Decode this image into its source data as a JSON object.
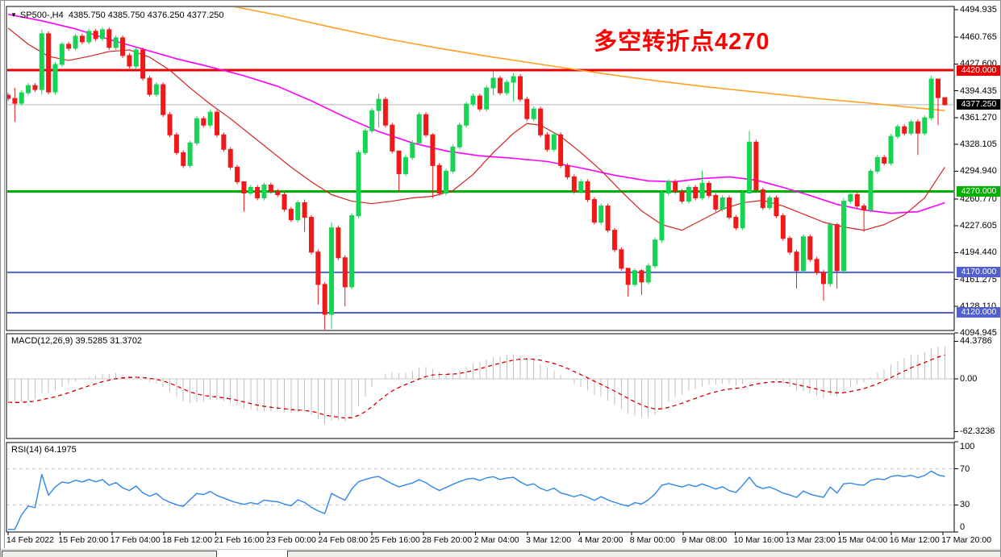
{
  "window": {
    "symbol_title": "SP500-,H4",
    "ohlc_readout": "4385.750 4385.750 4376.250 4377.250",
    "dropdown_glyph": "▼"
  },
  "annotation": {
    "text": "多空转折点4270",
    "color": "#ff0000"
  },
  "colors": {
    "bull": "#17d452",
    "bear": "#f11818",
    "ma_red": "#d42222",
    "ma_magenta": "#ff00ff",
    "ma_orange": "#ffa020",
    "macd_hist": "#c0c0c0",
    "macd_signal": "#dd0000",
    "rsi_line": "#2e86e8",
    "level_dash": "#c4c4c4",
    "current_line": "#b8b8b8",
    "border": "#000000"
  },
  "y_axis": {
    "main_ticks": [
      "4494.935",
      "4460.765",
      "4427.600",
      "4394.435",
      "4361.270",
      "4328.105",
      "4294.940",
      "4260.770",
      "4227.605",
      "4194.440",
      "4161.275",
      "4128.110",
      "4094.945"
    ],
    "badges": [
      {
        "text": "4420.000",
        "price": 4420.0,
        "bg": "#e80000"
      },
      {
        "text": "4377.250",
        "price": 4377.25,
        "bg": "#000000"
      },
      {
        "text": "4270.000",
        "price": 4270.0,
        "bg": "#00b000"
      },
      {
        "text": "4170.000",
        "price": 4170.0,
        "bg": "#5060d0"
      },
      {
        "text": "4120.000",
        "price": 4120.0,
        "bg": "#5060d0"
      }
    ]
  },
  "macd_panel": {
    "header": "MACD(12,26,9) 39.5285 31.3702",
    "ticks": [
      {
        "label": "44.3786",
        "value": 44.3786
      },
      {
        "label": "0.00",
        "value": 0
      },
      {
        "label": "-62.3236",
        "value": -62.3236
      }
    ]
  },
  "rsi_panel": {
    "header": "RSI(14) 64.1975",
    "ticks": [
      {
        "label": "100",
        "value": 100
      },
      {
        "label": "70",
        "value": 70
      },
      {
        "label": "30",
        "value": 30
      },
      {
        "label": "0",
        "value": 0
      }
    ],
    "levels": [
      70,
      30
    ]
  },
  "x_axis": {
    "labels": [
      "14 Feb 2022",
      "15 Feb 20:00",
      "17 Feb 04:00",
      "18 Feb 12:00",
      "21 Feb 16:00",
      "23 Feb 00:00",
      "24 Feb 08:00",
      "25 Feb 16:00",
      "28 Feb 20:00",
      "2 Mar 04:00",
      "3 Mar 12:00",
      "4 Mar 20:00",
      "8 Mar 00:00",
      "9 Mar 08:00",
      "10 Mar 16:00",
      "13 Mar 23:00",
      "15 Mar 04:00",
      "16 Mar 12:00",
      "17 Mar 20:00"
    ]
  },
  "chart_data": {
    "type": "candlestick",
    "symbol": "SP500-",
    "timeframe": "H4",
    "title": "SP500- H4 with MACD(12,26,9) and RSI(14)",
    "ylim_main": [
      4094.945,
      4494.935
    ],
    "ylim_macd": [
      -62.3236,
      44.3786
    ],
    "ylim_rsi": [
      0,
      100
    ],
    "current_price": 4377.25,
    "last_bar": {
      "open": 4385.75,
      "high": 4385.75,
      "low": 4376.25,
      "close": 4377.25
    },
    "first_open": 4389,
    "closes": [
      4385,
      4379,
      4392,
      4401,
      4396,
      4465,
      4393,
      4427,
      4452,
      4447,
      4462,
      4455,
      4468,
      4459,
      4470,
      4448,
      4460,
      4438,
      4425,
      4445,
      4410,
      4390,
      4402,
      4365,
      4340,
      4318,
      4302,
      4330,
      4360,
      4352,
      4368,
      4340,
      4322,
      4300,
      4282,
      4268,
      4275,
      4262,
      4278,
      4270,
      4266,
      4248,
      4235,
      4256,
      4238,
      4195,
      4155,
      4118,
      4225,
      4188,
      4152,
      4240,
      4318,
      4345,
      4370,
      4384,
      4352,
      4320,
      4292,
      4312,
      4330,
      4365,
      4340,
      4302,
      4268,
      4295,
      4325,
      4352,
      4378,
      4388,
      4372,
      4398,
      4410,
      4392,
      4405,
      4412,
      4384,
      4360,
      4372,
      4340,
      4322,
      4340,
      4302,
      4288,
      4270,
      4282,
      4260,
      4232,
      4252,
      4222,
      4198,
      4175,
      4155,
      4172,
      4158,
      4178,
      4210,
      4268,
      4282,
      4270,
      4258,
      4275,
      4262,
      4280,
      4265,
      4248,
      4262,
      4238,
      4225,
      4268,
      4331,
      4272,
      4250,
      4262,
      4240,
      4212,
      4195,
      4172,
      4214,
      4186,
      4170,
      4156,
      4229,
      4172,
      4258,
      4266,
      4252,
      4247,
      4295,
      4312,
      4305,
      4338,
      4350,
      4342,
      4356,
      4342,
      4361,
      4409,
      4386,
      4377.25
    ],
    "wick_overrides": {
      "1": [
        4398,
        4356
      ],
      "5": [
        4470,
        4390
      ],
      "35": [
        4281,
        4245
      ],
      "44": [
        4260,
        4220
      ],
      "46": [
        4198,
        4130
      ],
      "47": [
        4158,
        4095
      ],
      "48": [
        4232,
        4100
      ],
      "50": [
        4191,
        4128
      ],
      "55": [
        4391,
        4349
      ],
      "58": [
        4315,
        4270
      ],
      "63": [
        4342,
        4262
      ],
      "72": [
        4419,
        4389
      ],
      "75": [
        4416,
        4381
      ],
      "92": [
        4175,
        4140
      ],
      "94": [
        4174,
        4142
      ],
      "103": [
        4296,
        4259
      ],
      "110": [
        4345,
        4268
      ],
      "117": [
        4198,
        4150
      ],
      "121": [
        4173,
        4135
      ],
      "122": [
        4232,
        4152
      ],
      "123": [
        4231,
        4150
      ],
      "124": [
        4262,
        4168
      ],
      "127": [
        4255,
        4220
      ],
      "135": [
        4359,
        4315
      ],
      "137": [
        4413,
        4358
      ],
      "138": [
        4409,
        4352
      ],
      "139": [
        4386,
        4376.25
      ]
    },
    "hlines": [
      {
        "price": 4420,
        "color": "#e80000",
        "width": 3
      },
      {
        "price": 4270,
        "color": "#00b000",
        "width": 3
      },
      {
        "price": 4170,
        "color": "#5060d0",
        "width": 2
      },
      {
        "price": 4120,
        "color": "#5060d0",
        "width": 2
      }
    ],
    "ma_red": [
      [
        0,
        4472
      ],
      [
        3,
        4452
      ],
      [
        6,
        4437
      ],
      [
        9,
        4432
      ],
      [
        12,
        4437
      ],
      [
        15,
        4443
      ],
      [
        18,
        4445
      ],
      [
        21,
        4436
      ],
      [
        24,
        4420
      ],
      [
        27,
        4398
      ],
      [
        30,
        4378
      ],
      [
        33,
        4360
      ],
      [
        36,
        4340
      ],
      [
        39,
        4320
      ],
      [
        42,
        4300
      ],
      [
        45,
        4282
      ],
      [
        48,
        4266
      ],
      [
        51,
        4258
      ],
      [
        54,
        4255
      ],
      [
        57,
        4258
      ],
      [
        60,
        4262
      ],
      [
        63,
        4264
      ],
      [
        66,
        4271
      ],
      [
        69,
        4291
      ],
      [
        72,
        4318
      ],
      [
        75,
        4342
      ],
      [
        77,
        4354
      ],
      [
        79,
        4352
      ],
      [
        82,
        4338
      ],
      [
        85,
        4318
      ],
      [
        88,
        4296
      ],
      [
        91,
        4270
      ],
      [
        94,
        4246
      ],
      [
        97,
        4229
      ],
      [
        100,
        4222
      ],
      [
        103,
        4235
      ],
      [
        106,
        4248
      ],
      [
        109,
        4256
      ],
      [
        112,
        4259
      ],
      [
        115,
        4252
      ],
      [
        118,
        4242
      ],
      [
        121,
        4232
      ],
      [
        124,
        4226
      ],
      [
        127,
        4222
      ],
      [
        130,
        4229
      ],
      [
        133,
        4241
      ],
      [
        136,
        4262
      ],
      [
        139,
        4300
      ]
    ],
    "ma_magenta": [
      [
        0,
        4489
      ],
      [
        5,
        4481
      ],
      [
        10,
        4471
      ],
      [
        15,
        4458
      ],
      [
        20,
        4446
      ],
      [
        25,
        4434
      ],
      [
        30,
        4424
      ],
      [
        35,
        4413
      ],
      [
        40,
        4400
      ],
      [
        45,
        4382
      ],
      [
        50,
        4362
      ],
      [
        55,
        4344
      ],
      [
        60,
        4330
      ],
      [
        65,
        4320
      ],
      [
        70,
        4314
      ],
      [
        75,
        4311
      ],
      [
        80,
        4307
      ],
      [
        85,
        4299
      ],
      [
        90,
        4290
      ],
      [
        95,
        4283
      ],
      [
        99,
        4282
      ],
      [
        103,
        4286
      ],
      [
        107,
        4288
      ],
      [
        111,
        4284
      ],
      [
        115,
        4275
      ],
      [
        119,
        4265
      ],
      [
        123,
        4254
      ],
      [
        127,
        4247
      ],
      [
        131,
        4243
      ],
      [
        135,
        4245
      ],
      [
        139,
        4256
      ]
    ],
    "ma_orange": [
      [
        32,
        4501
      ],
      [
        40,
        4488
      ],
      [
        48,
        4473
      ],
      [
        56,
        4459
      ],
      [
        64,
        4447
      ],
      [
        72,
        4436
      ],
      [
        80,
        4426
      ],
      [
        88,
        4416
      ],
      [
        96,
        4407
      ],
      [
        104,
        4399
      ],
      [
        112,
        4392
      ],
      [
        120,
        4385
      ],
      [
        128,
        4379
      ],
      [
        134,
        4374
      ],
      [
        139,
        4370
      ]
    ],
    "macd": {
      "fast": 12,
      "slow": 26,
      "signal_period": 9,
      "current_main": 39.5285,
      "current_signal": 31.3702
    },
    "rsi": {
      "period": 14,
      "current": 64.1975
    },
    "warmup": {
      "bars": 40,
      "from": 4560,
      "to": 4385
    }
  }
}
